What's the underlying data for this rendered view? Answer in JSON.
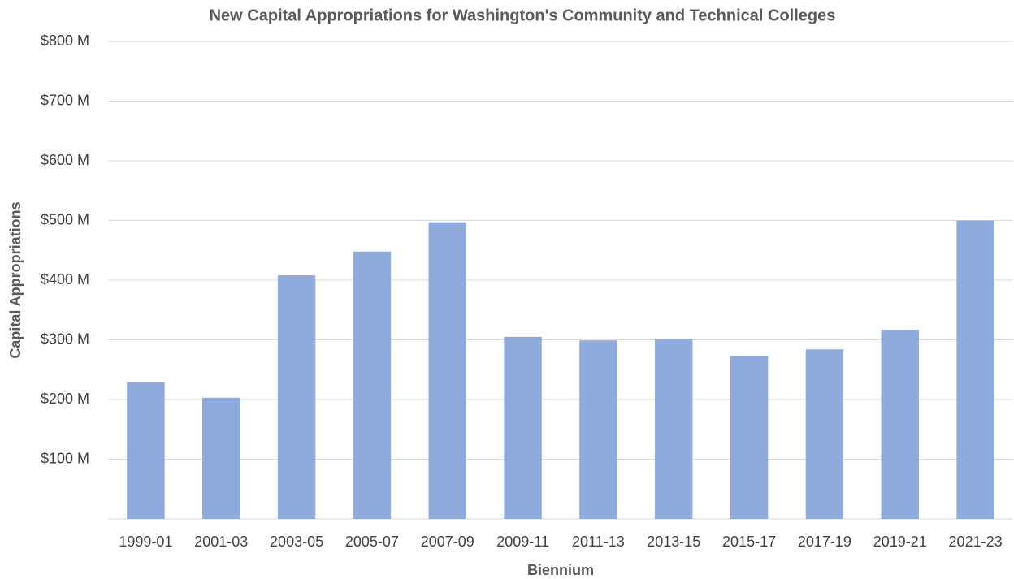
{
  "chart_data": {
    "type": "bar",
    "title": "New Capital Appropriations for Washington's Community and Technical Colleges",
    "x_label": "Biennium",
    "y_label": "Capital Appropriations",
    "categories": [
      "1999-01",
      "2001-03",
      "2003-05",
      "2005-07",
      "2007-09",
      "2009-11",
      "2011-13",
      "2013-15",
      "2015-17",
      "2017-19",
      "2019-21",
      "2021-23"
    ],
    "values": [
      229,
      203,
      408,
      448,
      497,
      305,
      299,
      301,
      273,
      284,
      317,
      500
    ],
    "color": "#8faadc",
    "ylim": [
      0,
      800
    ],
    "yticks": [
      {
        "value": 100,
        "label": "$100 M"
      },
      {
        "value": 200,
        "label": "$200 M"
      },
      {
        "value": 300,
        "label": "$300 M"
      },
      {
        "value": 400,
        "label": "$400 M"
      },
      {
        "value": 500,
        "label": "$500 M"
      },
      {
        "value": 600,
        "label": "$600 M"
      },
      {
        "value": 700,
        "label": "$700 M"
      },
      {
        "value": 800,
        "label": "$800 M"
      }
    ],
    "grid": true
  }
}
